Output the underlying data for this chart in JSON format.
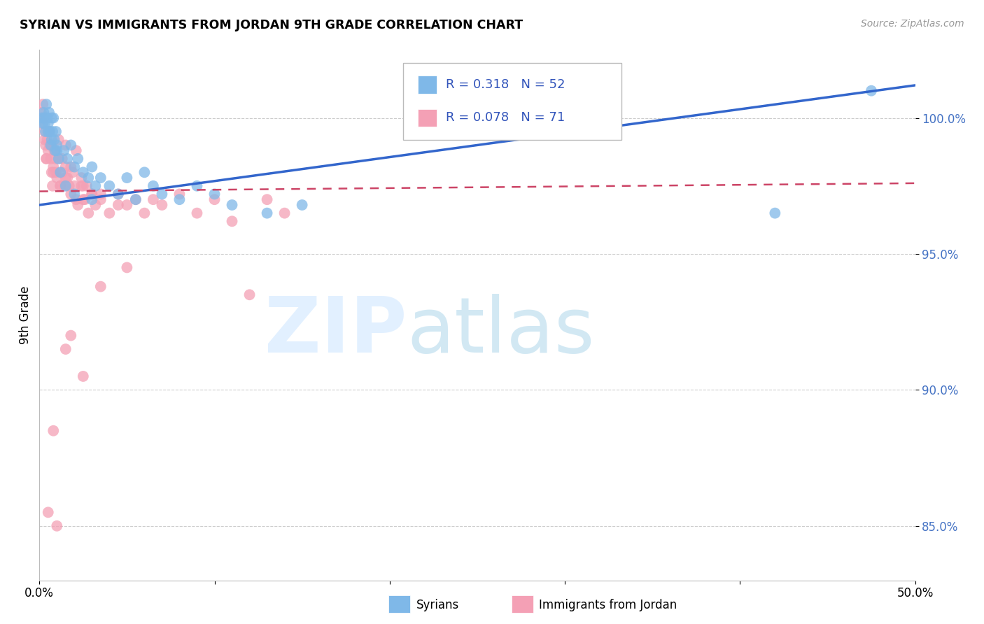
{
  "title": "SYRIAN VS IMMIGRANTS FROM JORDAN 9TH GRADE CORRELATION CHART",
  "source": "Source: ZipAtlas.com",
  "ylabel": "9th Grade",
  "xlim": [
    0.0,
    50.0
  ],
  "ylim": [
    83.0,
    102.5
  ],
  "ytick_vals": [
    85.0,
    90.0,
    95.0,
    100.0
  ],
  "r_blue": "0.318",
  "n_blue": "52",
  "r_pink": "0.078",
  "n_pink": "71",
  "blue_color": "#7fb8e8",
  "pink_color": "#f4a0b5",
  "blue_line_color": "#3366cc",
  "pink_line_color": "#cc4466",
  "blue_line_x0": 0.0,
  "blue_line_y0": 96.8,
  "blue_line_x1": 50.0,
  "blue_line_y1": 101.2,
  "pink_line_x0": 0.0,
  "pink_line_y0": 97.3,
  "pink_line_x1": 50.0,
  "pink_line_y1": 97.6,
  "blue_scatter_x": [
    0.15,
    0.2,
    0.25,
    0.3,
    0.35,
    0.4,
    0.45,
    0.5,
    0.55,
    0.6,
    0.65,
    0.7,
    0.75,
    0.8,
    0.85,
    0.9,
    0.95,
    1.0,
    1.1,
    1.2,
    1.4,
    1.6,
    1.8,
    2.0,
    2.2,
    2.5,
    2.8,
    3.0,
    3.2,
    3.5,
    4.0,
    4.5,
    5.0,
    5.5,
    6.0,
    6.5,
    7.0,
    8.0,
    9.0,
    10.0,
    11.0,
    13.0,
    15.0,
    42.0,
    47.5,
    0.3,
    0.5,
    0.7,
    1.0,
    1.5,
    2.0,
    3.0
  ],
  "blue_scatter_y": [
    100.0,
    99.8,
    100.2,
    100.0,
    99.5,
    100.5,
    100.0,
    99.8,
    100.2,
    99.5,
    99.0,
    100.0,
    99.5,
    100.0,
    99.2,
    98.8,
    99.5,
    99.0,
    98.5,
    98.0,
    98.8,
    98.5,
    99.0,
    98.2,
    98.5,
    98.0,
    97.8,
    98.2,
    97.5,
    97.8,
    97.5,
    97.2,
    97.8,
    97.0,
    98.0,
    97.5,
    97.2,
    97.0,
    97.5,
    97.2,
    96.8,
    96.5,
    96.8,
    96.5,
    101.0,
    99.8,
    99.5,
    99.2,
    98.8,
    97.5,
    97.2,
    97.0
  ],
  "pink_scatter_x": [
    0.1,
    0.15,
    0.2,
    0.25,
    0.3,
    0.35,
    0.4,
    0.45,
    0.5,
    0.55,
    0.6,
    0.65,
    0.7,
    0.75,
    0.8,
    0.85,
    0.9,
    0.95,
    1.0,
    1.1,
    1.2,
    1.3,
    1.4,
    1.5,
    1.6,
    1.7,
    1.8,
    1.9,
    2.0,
    2.1,
    2.2,
    2.4,
    2.6,
    2.8,
    3.0,
    3.2,
    3.5,
    4.0,
    4.5,
    5.0,
    5.5,
    6.0,
    6.5,
    7.0,
    8.0,
    9.0,
    10.0,
    11.0,
    12.0,
    13.0,
    14.0,
    0.3,
    0.5,
    0.7,
    0.9,
    1.1,
    1.3,
    1.5,
    1.8,
    2.1,
    2.4,
    2.7,
    3.0,
    0.4,
    0.8,
    1.2,
    2.5,
    3.5,
    4.5,
    1.5,
    2.5
  ],
  "pink_scatter_y": [
    100.2,
    99.8,
    100.5,
    100.0,
    99.5,
    99.0,
    98.5,
    99.2,
    98.8,
    99.5,
    99.0,
    98.5,
    98.0,
    97.5,
    98.2,
    98.8,
    98.5,
    98.0,
    97.8,
    98.5,
    97.5,
    98.0,
    97.5,
    98.2,
    97.8,
    97.5,
    97.2,
    98.0,
    97.5,
    97.0,
    96.8,
    97.5,
    97.0,
    96.5,
    97.2,
    96.8,
    97.0,
    96.5,
    97.2,
    96.8,
    97.0,
    96.5,
    97.0,
    96.8,
    97.2,
    96.5,
    97.0,
    96.2,
    93.5,
    97.0,
    96.5,
    99.2,
    99.5,
    99.0,
    98.8,
    99.2,
    98.5,
    99.0,
    98.2,
    98.8,
    97.8,
    97.5,
    97.2,
    98.5,
    98.0,
    97.5,
    97.0,
    97.2,
    96.8,
    97.8,
    97.5
  ],
  "pink_outlier_x": [
    0.5,
    1.0,
    1.8,
    2.5,
    3.5,
    5.0,
    0.8,
    1.5
  ],
  "pink_outlier_y": [
    85.5,
    85.0,
    92.0,
    90.5,
    93.8,
    94.5,
    88.5,
    91.5
  ]
}
